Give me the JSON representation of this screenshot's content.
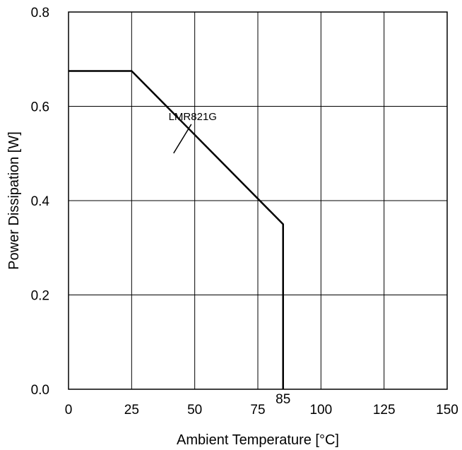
{
  "chart_data": {
    "type": "line",
    "xlabel": "Ambient Temperature [°C]",
    "ylabel": "Power Dissipation [W]",
    "xlim": [
      0,
      150
    ],
    "ylim": [
      0,
      0.8
    ],
    "x_ticks": [
      0,
      25,
      50,
      75,
      100,
      125,
      150
    ],
    "x_tick_labels": [
      "0",
      "25",
      "50",
      "75",
      "100",
      "125",
      "150"
    ],
    "y_ticks": [
      0,
      0.2,
      0.4,
      0.6,
      0.8
    ],
    "y_tick_labels": [
      "0.0",
      "0.2",
      "0.4",
      "0.6",
      "0.8"
    ],
    "grid": true,
    "series": [
      {
        "name": "LMR821G",
        "x": [
          0,
          25,
          85,
          85
        ],
        "y": [
          0.675,
          0.675,
          0.35,
          0
        ]
      }
    ],
    "annotations": [
      {
        "text": "LMR821G",
        "x": 38,
        "y": 0.58
      },
      {
        "text": "85",
        "x": 85,
        "y": 0
      }
    ],
    "line_color": "#000000",
    "grid_color": "#000000"
  }
}
